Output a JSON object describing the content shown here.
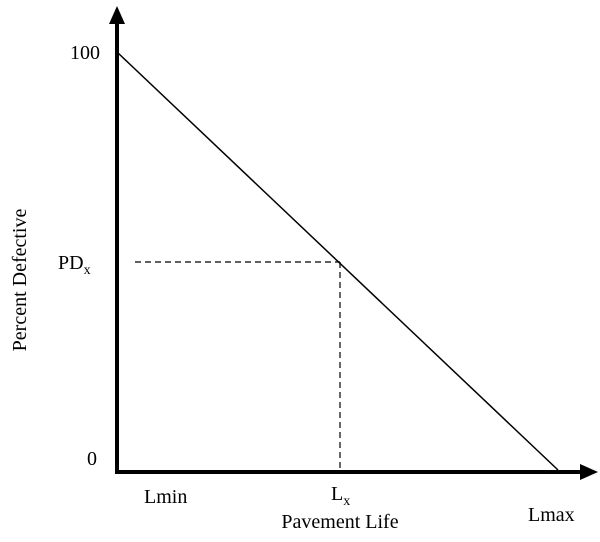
{
  "y_axis": {
    "title": "Percent Defective",
    "labels": {
      "top": "100",
      "middle": {
        "main": "PD",
        "sub": "x"
      },
      "bottom": "0"
    }
  },
  "x_axis": {
    "title": "Pavement Life",
    "labels": {
      "left": "Lmin",
      "middle": {
        "main": "L",
        "sub": "x"
      },
      "right": "Lmax"
    }
  }
}
